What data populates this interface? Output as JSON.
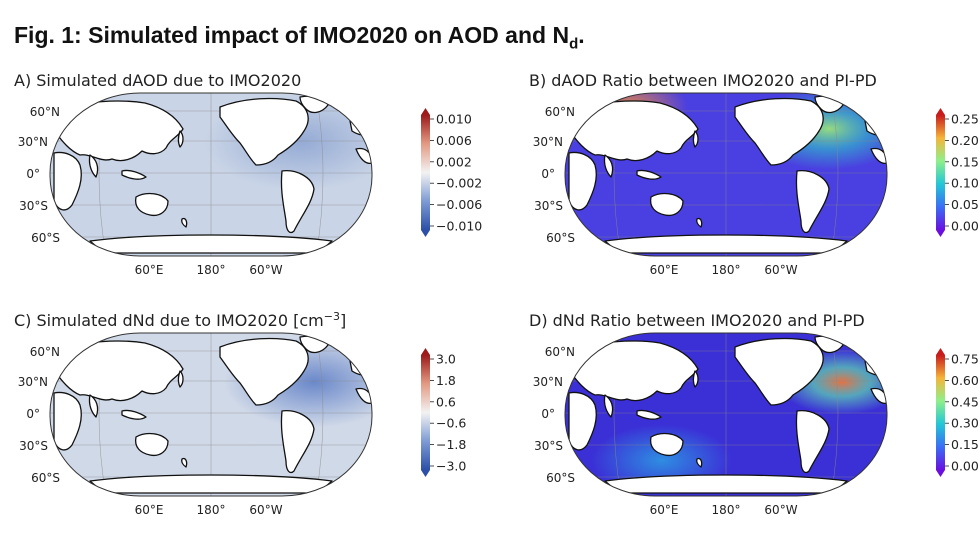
{
  "figure": {
    "title_main": "Fig. 1: Simulated impact of IMO2020 on AOD and N",
    "title_sub": "d",
    "title_end": "."
  },
  "chart_data": [
    {
      "type": "heatmap",
      "id": "A",
      "title": "A) Simulated dAOD due to IMO2020",
      "projection": "Robinson, centered on Pacific",
      "lat_labels": [
        "60°N",
        "30°N",
        "0°",
        "30°S",
        "60°S"
      ],
      "lon_labels": [
        "60°E",
        "180°",
        "60°W"
      ],
      "colormap": "diverging blue-white-red",
      "colorbar_ticks": [
        "0.010",
        "0.006",
        "0.002",
        "−0.002",
        "−0.006",
        "−0.010"
      ],
      "colorbar_range": [
        -0.01,
        0.01
      ],
      "field_description": "weak negative values over oceans, largest over North Atlantic and shipping lanes",
      "colors": {
        "ocean": "#c9d4e6",
        "land": "#ffffff",
        "strong": "#9fb3d6"
      }
    },
    {
      "type": "heatmap",
      "id": "B",
      "title": "B) dAOD Ratio between IMO2020 and PI-PD",
      "projection": "Robinson, centered on Pacific",
      "lat_labels": [
        "60°N",
        "30°N",
        "0°",
        "30°S",
        "60°S"
      ],
      "lon_labels": [
        "60°E",
        "180°",
        "60°W"
      ],
      "colormap": "rainbow",
      "colorbar_ticks": [
        "0.25",
        "0.20",
        "0.15",
        "0.10",
        "0.05",
        "0.00"
      ],
      "colorbar_range": [
        0.0,
        0.25
      ],
      "field_description": "mostly 0.02-0.06 over oceans, higher (~0.15-0.2) over North Atlantic and Arctic",
      "colors": {
        "ocean": "#4a3fe0",
        "land": "#ffffff",
        "strong": "#47d1a0"
      }
    },
    {
      "type": "heatmap",
      "id": "C",
      "title": "C) Simulated dNd due to IMO2020 [cm",
      "title_sup": "−3",
      "title_end": "]",
      "projection": "Robinson, centered on Pacific",
      "lat_labels": [
        "60°N",
        "30°N",
        "0°",
        "30°S",
        "60°S"
      ],
      "lon_labels": [
        "60°E",
        "180°",
        "60°W"
      ],
      "colormap": "diverging blue-white-red",
      "colorbar_ticks": [
        "3.0",
        "1.8",
        "0.6",
        "−0.6",
        "−1.8",
        "−3.0"
      ],
      "colorbar_range": [
        -3.0,
        3.0
      ],
      "field_description": "weak negative over oceans, stronger negative in North Atlantic and Pacific shipping lanes",
      "colors": {
        "ocean": "#d0d9e8",
        "land": "#ffffff",
        "strong": "#8ea6d6"
      }
    },
    {
      "type": "heatmap",
      "id": "D",
      "title": "D) dNd Ratio between IMO2020 and PI-PD",
      "projection": "Robinson, centered on Pacific",
      "lat_labels": [
        "60°N",
        "30°N",
        "0°",
        "30°S",
        "60°S"
      ],
      "lon_labels": [
        "60°E",
        "180°",
        "60°W"
      ],
      "colormap": "rainbow",
      "colorbar_ticks": [
        "0.75",
        "0.60",
        "0.45",
        "0.30",
        "0.15",
        "0.00"
      ],
      "colorbar_range": [
        0.0,
        0.75
      ],
      "field_description": "0.05-0.2 over most oceans, peaks ~0.5-0.6 in North Atlantic",
      "colors": {
        "ocean": "#3b2fd6",
        "land": "#ffffff",
        "strong": "#e38a3a"
      }
    }
  ]
}
